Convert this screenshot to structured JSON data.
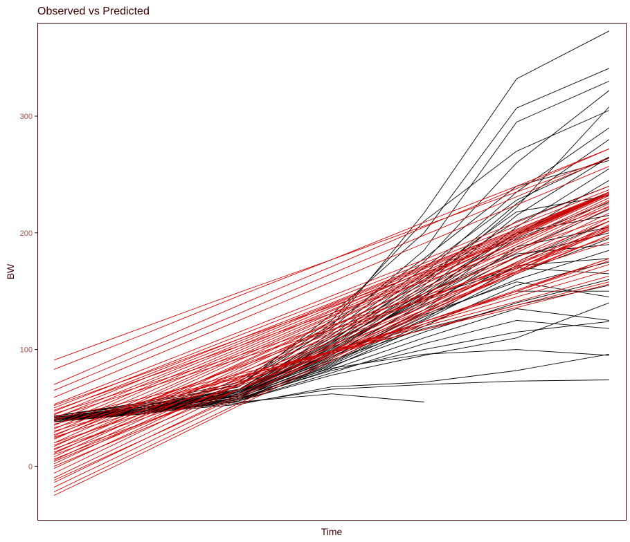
{
  "chart_data": {
    "type": "line",
    "title": "Observed vs Predicted",
    "xlabel": "Time",
    "ylabel": "BW",
    "x_tick_labels_visible": false,
    "x": [
      0,
      1,
      2,
      3,
      4,
      5,
      6
    ],
    "xlim": [
      -0.18,
      6.18
    ],
    "ylim": [
      -46,
      380
    ],
    "y_ticks": [
      0,
      100,
      200,
      300
    ],
    "y_tick_labels": [
      "0",
      "100",
      "200",
      "300"
    ],
    "grid": false,
    "legend": "none",
    "colors": {
      "observed": "#000000",
      "predicted": "#cc0000",
      "tick_label": "#b24a4a",
      "text": "#3a0000"
    },
    "observed_series": [
      [
        40,
        48,
        65,
        120,
        217,
        332,
        373
      ],
      [
        42,
        50,
        68,
        130,
        200,
        307,
        341
      ],
      [
        41,
        52,
        70,
        118,
        185,
        295,
        330
      ],
      [
        39,
        47,
        62,
        115,
        175,
        260,
        322
      ],
      [
        43,
        55,
        72,
        125,
        210,
        270,
        305
      ],
      [
        40,
        50,
        66,
        110,
        165,
        235,
        290
      ],
      [
        41,
        49,
        64,
        105,
        158,
        225,
        280
      ],
      [
        42,
        51,
        63,
        100,
        150,
        215,
        265
      ],
      [
        40,
        48,
        60,
        98,
        145,
        205,
        255
      ],
      [
        38,
        46,
        58,
        95,
        140,
        198,
        245
      ],
      [
        41,
        50,
        62,
        102,
        155,
        222,
        308
      ],
      [
        39,
        47,
        61,
        97,
        148,
        200,
        235
      ],
      [
        40,
        49,
        63,
        99,
        146,
        195,
        226
      ],
      [
        42,
        52,
        65,
        108,
        160,
        210,
        240
      ],
      [
        43,
        53,
        66,
        103,
        142,
        185,
        220
      ],
      [
        40,
        48,
        60,
        92,
        132,
        175,
        210
      ],
      [
        41,
        50,
        62,
        96,
        138,
        180,
        200
      ],
      [
        39,
        46,
        57,
        88,
        125,
        165,
        195
      ],
      [
        40,
        47,
        59,
        90,
        128,
        160,
        185
      ],
      [
        38,
        45,
        56,
        85,
        120,
        155,
        175
      ],
      [
        42,
        51,
        64,
        101,
        144,
        170,
        165
      ],
      [
        41,
        49,
        61,
        94,
        130,
        158,
        145
      ],
      [
        40,
        48,
        58,
        86,
        115,
        140,
        160
      ],
      [
        39,
        47,
        57,
        83,
        110,
        135,
        125
      ],
      [
        40,
        46,
        56,
        80,
        105,
        125,
        118
      ],
      [
        41,
        48,
        58,
        82,
        100,
        115,
        124
      ],
      [
        42,
        50,
        60,
        84,
        96,
        100,
        95
      ],
      [
        40,
        47,
        54,
        66,
        70,
        73,
        74
      ],
      [
        41,
        49,
        55,
        62,
        55,
        null,
        null
      ],
      [
        40,
        46,
        53,
        68,
        72,
        82,
        96
      ],
      [
        39,
        45,
        56,
        78,
        95,
        110,
        140
      ],
      [
        42,
        52,
        66,
        112,
        170,
        228,
        265
      ],
      [
        41,
        50,
        64,
        107,
        162,
        218,
        232
      ],
      [
        40,
        49,
        62,
        104,
        152,
        200,
        215
      ],
      [
        43,
        54,
        70,
        122,
        178,
        240,
        262
      ],
      [
        40,
        48,
        61,
        93,
        134,
        188,
        205
      ],
      [
        41,
        47,
        59,
        89,
        126,
        172,
        178
      ],
      [
        42,
        51,
        63,
        106,
        148,
        182,
        190
      ],
      [
        38,
        46,
        57,
        87,
        122,
        150,
        150
      ],
      [
        40,
        49,
        61,
        91,
        118,
        138,
        155
      ]
    ],
    "predicted_series": [
      [
        -25,
        13,
        52,
        90,
        129,
        167,
        206
      ],
      [
        -22,
        16,
        54,
        92,
        131,
        169,
        207
      ],
      [
        -18,
        20,
        58,
        96,
        134,
        172,
        210
      ],
      [
        -14,
        24,
        62,
        99,
        137,
        175,
        213
      ],
      [
        -10,
        28,
        66,
        103,
        141,
        179,
        217
      ],
      [
        -6,
        32,
        70,
        107,
        145,
        183,
        221
      ],
      [
        -2,
        35,
        73,
        110,
        148,
        185,
        223
      ],
      [
        2,
        39,
        76,
        113,
        151,
        188,
        225
      ],
      [
        5,
        42,
        79,
        116,
        153,
        190,
        227
      ],
      [
        8,
        45,
        82,
        119,
        156,
        193,
        230
      ],
      [
        11,
        47,
        84,
        120,
        156,
        192,
        228
      ],
      [
        14,
        50,
        87,
        123,
        159,
        196,
        232
      ],
      [
        17,
        52,
        88,
        124,
        160,
        196,
        232
      ],
      [
        20,
        55,
        91,
        126,
        162,
        197,
        233
      ],
      [
        23,
        58,
        93,
        128,
        163,
        198,
        234
      ],
      [
        26,
        60,
        95,
        129,
        164,
        198,
        233
      ],
      [
        29,
        63,
        97,
        131,
        165,
        199,
        233
      ],
      [
        32,
        66,
        99,
        133,
        167,
        200,
        234
      ],
      [
        35,
        68,
        101,
        134,
        167,
        200,
        233
      ],
      [
        38,
        71,
        103,
        136,
        169,
        201,
        234
      ],
      [
        41,
        73,
        105,
        138,
        170,
        202,
        234
      ],
      [
        44,
        76,
        107,
        139,
        171,
        203,
        235
      ],
      [
        47,
        78,
        109,
        140,
        172,
        203,
        234
      ],
      [
        50,
        81,
        112,
        143,
        174,
        206,
        237
      ],
      [
        53,
        84,
        115,
        146,
        177,
        209,
        240
      ],
      [
        59,
        92,
        125,
        158,
        191,
        224,
        257
      ],
      [
        65,
        98,
        131,
        165,
        198,
        231,
        264
      ],
      [
        70,
        104,
        138,
        171,
        205,
        238,
        272
      ],
      [
        83,
        114,
        146,
        177,
        209,
        240,
        272
      ],
      [
        91,
        120,
        149,
        177,
        206,
        235,
        264
      ],
      [
        10,
        38,
        66,
        94,
        122,
        150,
        178
      ],
      [
        15,
        42,
        69,
        96,
        124,
        151,
        178
      ],
      [
        20,
        46,
        72,
        98,
        124,
        150,
        176
      ],
      [
        25,
        49,
        74,
        99,
        124,
        148,
        173
      ],
      [
        30,
        53,
        76,
        99,
        122,
        145,
        168
      ],
      [
        33,
        55,
        76,
        98,
        120,
        141,
        163
      ],
      [
        36,
        56,
        77,
        97,
        117,
        138,
        158
      ],
      [
        40,
        59,
        79,
        98,
        117,
        136,
        156
      ],
      [
        0,
        33,
        66,
        99,
        132,
        165,
        198
      ],
      [
        6,
        38,
        70,
        102,
        134,
        166,
        198
      ],
      [
        12,
        44,
        75,
        107,
        139,
        170,
        202
      ],
      [
        18,
        49,
        80,
        111,
        143,
        174,
        205
      ],
      [
        24,
        55,
        86,
        117,
        148,
        179,
        210
      ],
      [
        45,
        70,
        95,
        121,
        146,
        171,
        196
      ],
      [
        48,
        76,
        103,
        131,
        158,
        186,
        213
      ],
      [
        52,
        80,
        109,
        137,
        166,
        194,
        222
      ],
      [
        -12,
        24,
        60,
        96,
        131,
        167,
        203
      ],
      [
        4,
        37,
        71,
        104,
        137,
        170,
        204
      ],
      [
        27,
        56,
        85,
        114,
        144,
        173,
        202
      ],
      [
        42,
        67,
        92,
        117,
        142,
        167,
        192
      ]
    ]
  }
}
